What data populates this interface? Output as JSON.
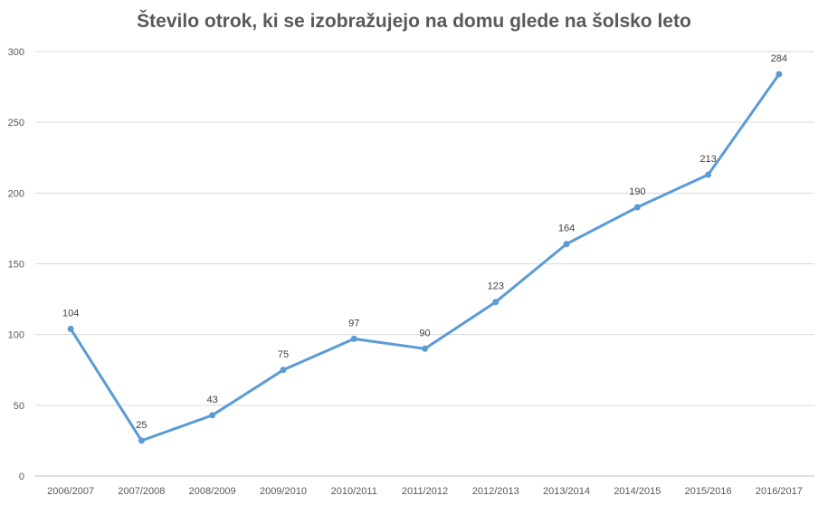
{
  "chart_data": {
    "type": "line",
    "title": "Število otrok, ki se izobražujejo na domu glede na šolsko leto",
    "xlabel": "",
    "ylabel": "",
    "categories": [
      "2006/2007",
      "2007/2008",
      "2008/2009",
      "2009/2010",
      "2010/2011",
      "2011/2012",
      "2012/2013",
      "2013/2014",
      "2014/2015",
      "2015/2016",
      "2016/2017"
    ],
    "series": [
      {
        "values": [
          104,
          25,
          43,
          75,
          97,
          90,
          123,
          164,
          190,
          213,
          284
        ]
      }
    ],
    "ylim": [
      0,
      300
    ],
    "yticks": [
      0,
      50,
      100,
      150,
      200,
      250,
      300
    ],
    "ytick_labels": [
      "0",
      "50",
      "100",
      "150",
      "200",
      "250",
      "300"
    ],
    "grid": true,
    "legend": "none",
    "data_labels": true,
    "colors": {
      "line": "#5b9bd5",
      "grid": "#d9d9d9",
      "text": "#595959"
    }
  }
}
